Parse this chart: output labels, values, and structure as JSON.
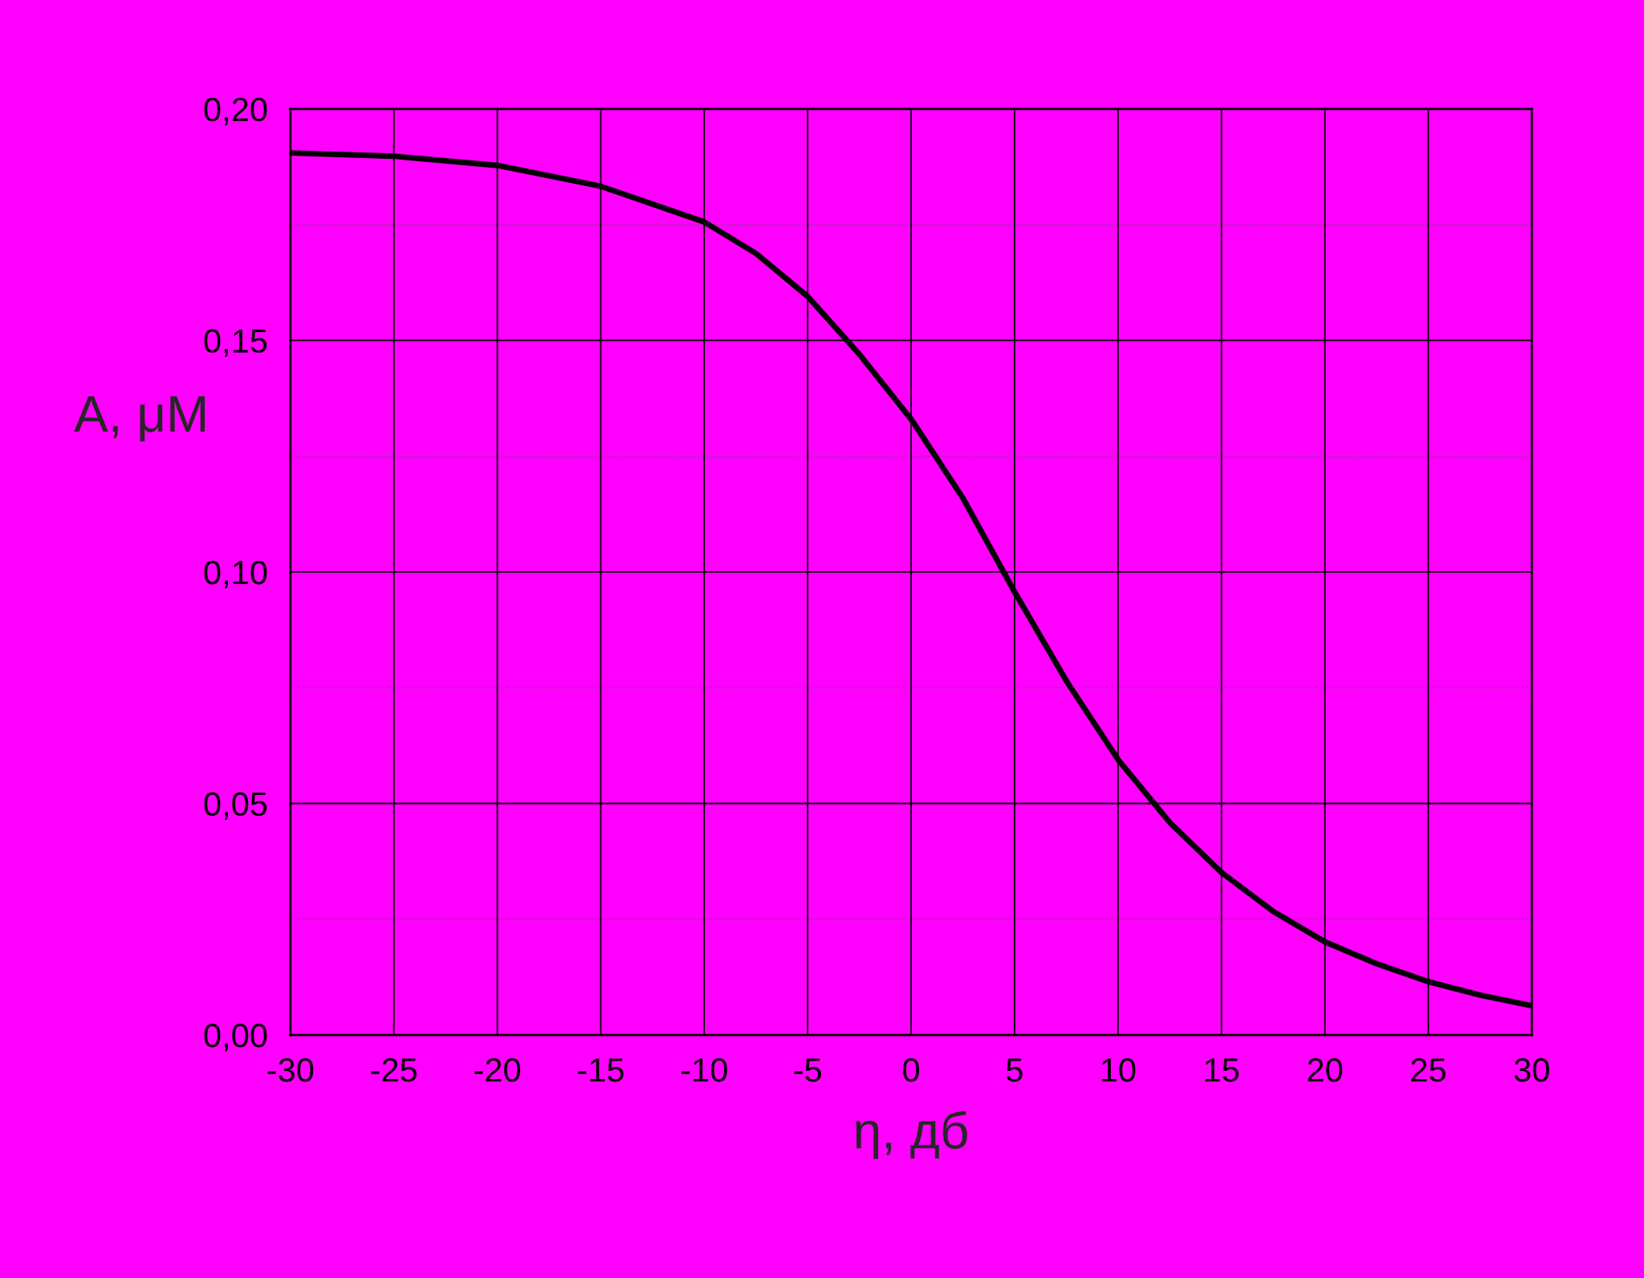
{
  "chart_data": {
    "type": "line",
    "xlabel": "η, дб",
    "ylabel": "A, μM",
    "x": [
      -30,
      -25,
      -20,
      -15,
      -10,
      -7.5,
      -5,
      -2.5,
      0,
      2.5,
      5,
      7.5,
      10,
      12.5,
      15,
      17.5,
      20,
      22.5,
      25,
      27.5,
      30
    ],
    "series": [
      {
        "color": "#000000",
        "values": [
          0.1905,
          0.1898,
          0.1878,
          0.1833,
          0.1756,
          0.1688,
          0.1595,
          0.147,
          0.133,
          0.116,
          0.0957,
          0.0765,
          0.0595,
          0.0459,
          0.0351,
          0.0267,
          0.0201,
          0.0154,
          0.0115,
          0.0086,
          0.0063
        ]
      }
    ],
    "xlim": [
      -30,
      30
    ],
    "xticks": [
      -30,
      -25,
      -20,
      -15,
      -10,
      -5,
      0,
      5,
      10,
      15,
      20,
      25,
      30
    ],
    "ylim": [
      0,
      0.2
    ],
    "yticks": [
      {
        "value": 0,
        "label": "0,00"
      },
      {
        "value": 0.05,
        "label": "0,05"
      },
      {
        "value": 0.1,
        "label": "0,10"
      },
      {
        "value": 0.15,
        "label": "0,15"
      },
      {
        "value": 0.2,
        "label": "0,20"
      }
    ],
    "grid": true,
    "marker": "none",
    "line_style": "solid"
  }
}
